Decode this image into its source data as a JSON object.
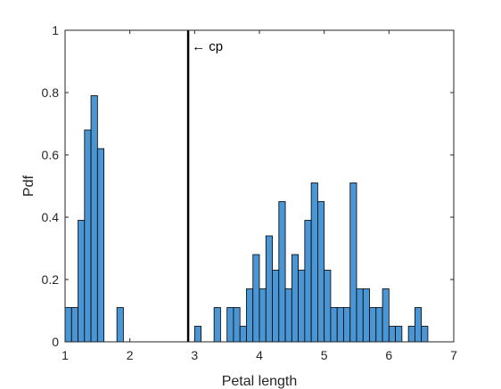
{
  "chart_data": {
    "type": "bar",
    "xlabel": "Petal length",
    "ylabel": "Pdf",
    "xlim": [
      1,
      7
    ],
    "ylim": [
      0,
      1
    ],
    "xticks": [
      "1",
      "2",
      "3",
      "4",
      "5",
      "6",
      "7"
    ],
    "yticks": [
      "0",
      "0.2",
      "0.4",
      "0.6",
      "0.8",
      "1"
    ],
    "grid": false,
    "bin_width": 0.1,
    "series": [
      {
        "bins": [
          {
            "left": 1.0,
            "value": 0.11
          },
          {
            "left": 1.1,
            "value": 0.11
          },
          {
            "left": 1.2,
            "value": 0.39
          },
          {
            "left": 1.3,
            "value": 0.68
          },
          {
            "left": 1.4,
            "value": 0.79
          },
          {
            "left": 1.5,
            "value": 0.62
          },
          {
            "left": 1.8,
            "value": 0.11
          },
          {
            "left": 3.0,
            "value": 0.05
          },
          {
            "left": 3.3,
            "value": 0.11
          },
          {
            "left": 3.5,
            "value": 0.11
          },
          {
            "left": 3.6,
            "value": 0.11
          },
          {
            "left": 3.7,
            "value": 0.05
          },
          {
            "left": 3.8,
            "value": 0.17
          },
          {
            "left": 3.9,
            "value": 0.28
          },
          {
            "left": 4.0,
            "value": 0.17
          },
          {
            "left": 4.1,
            "value": 0.34
          },
          {
            "left": 4.2,
            "value": 0.23
          },
          {
            "left": 4.3,
            "value": 0.45
          },
          {
            "left": 4.4,
            "value": 0.17
          },
          {
            "left": 4.5,
            "value": 0.28
          },
          {
            "left": 4.6,
            "value": 0.23
          },
          {
            "left": 4.7,
            "value": 0.39
          },
          {
            "left": 4.8,
            "value": 0.51
          },
          {
            "left": 4.9,
            "value": 0.45
          },
          {
            "left": 5.0,
            "value": 0.23
          },
          {
            "left": 5.1,
            "value": 0.11
          },
          {
            "left": 5.2,
            "value": 0.11
          },
          {
            "left": 5.3,
            "value": 0.11
          },
          {
            "left": 5.4,
            "value": 0.51
          },
          {
            "left": 5.5,
            "value": 0.17
          },
          {
            "left": 5.6,
            "value": 0.17
          },
          {
            "left": 5.7,
            "value": 0.11
          },
          {
            "left": 5.8,
            "value": 0.11
          },
          {
            "left": 5.9,
            "value": 0.17
          },
          {
            "left": 6.0,
            "value": 0.05
          },
          {
            "left": 6.1,
            "value": 0.05
          },
          {
            "left": 6.3,
            "value": 0.05
          },
          {
            "left": 6.4,
            "value": 0.11
          },
          {
            "left": 6.5,
            "value": 0.05
          }
        ]
      }
    ],
    "colors": {
      "bar_fill": "#4a96d4",
      "bar_edge": "#000000",
      "vline": "#000000"
    },
    "vline": {
      "x": 2.9,
      "label": "← cp"
    }
  }
}
